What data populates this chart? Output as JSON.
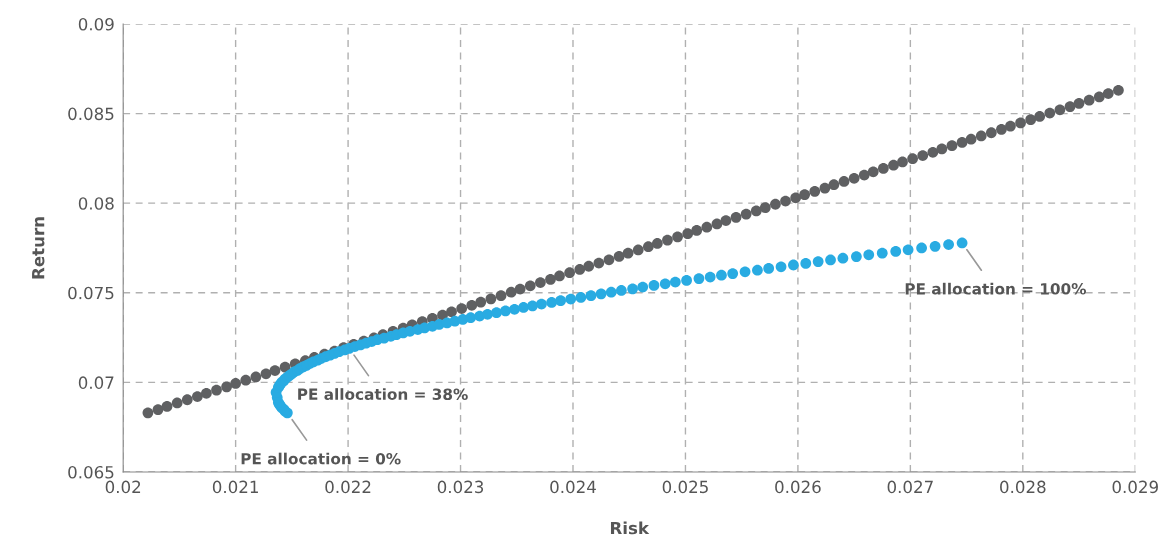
{
  "chart_data": {
    "type": "scatter",
    "xlabel": "Risk",
    "ylabel": "Return",
    "xlim": [
      0.02,
      0.029
    ],
    "xticks": [
      0.02,
      0.021,
      0.022,
      0.023,
      0.024,
      0.025,
      0.026,
      0.027,
      0.028,
      0.029
    ],
    "ylim": [
      0.065,
      0.09
    ],
    "yticks": [
      0.065,
      0.07,
      0.075,
      0.08,
      0.085,
      0.09
    ],
    "grid": true,
    "marker": "circle",
    "series": [
      {
        "color": "#5f6062",
        "x": [
          0.02022,
          0.02031,
          0.02039,
          0.02048,
          0.02057,
          0.02066,
          0.02074,
          0.02083,
          0.02092,
          0.021,
          0.02109,
          0.02118,
          0.02127,
          0.02135,
          0.02144,
          0.02153,
          0.02162,
          0.0217,
          0.02179,
          0.02188,
          0.02196,
          0.02205,
          0.02214,
          0.02223,
          0.02231,
          0.0224,
          0.02249,
          0.02257,
          0.02266,
          0.02275,
          0.02284,
          0.02292,
          0.02301,
          0.0231,
          0.02318,
          0.02327,
          0.02336,
          0.02345,
          0.02353,
          0.02362,
          0.02371,
          0.0238,
          0.02388,
          0.02397,
          0.02406,
          0.02414,
          0.02423,
          0.02432,
          0.02441,
          0.02449,
          0.02458,
          0.02467,
          0.02475,
          0.02484,
          0.02493,
          0.02502,
          0.0251,
          0.02519,
          0.02528,
          0.02536,
          0.02545,
          0.02554,
          0.02563,
          0.02571,
          0.0258,
          0.02589,
          0.02598,
          0.02606,
          0.02615,
          0.02624,
          0.02632,
          0.02641,
          0.0265,
          0.02659,
          0.02667,
          0.02676,
          0.02685,
          0.02693,
          0.02702,
          0.02711,
          0.0272,
          0.02728,
          0.02737,
          0.02746,
          0.02754,
          0.02763,
          0.02772,
          0.02781,
          0.02789,
          0.02798,
          0.02807,
          0.02815,
          0.02824,
          0.02833,
          0.02842,
          0.0285,
          0.02859,
          0.02868,
          0.02876,
          0.02885
        ],
        "values": [
          0.0683,
          0.06848,
          0.06866,
          0.06885,
          0.06903,
          0.06921,
          0.06939,
          0.06957,
          0.06975,
          0.06994,
          0.07012,
          0.0703,
          0.07048,
          0.07066,
          0.07085,
          0.07103,
          0.07121,
          0.07139,
          0.07157,
          0.07175,
          0.07194,
          0.07212,
          0.0723,
          0.07248,
          0.07266,
          0.07285,
          0.07303,
          0.07321,
          0.07339,
          0.07357,
          0.07375,
          0.07394,
          0.07412,
          0.0743,
          0.07448,
          0.07466,
          0.07484,
          0.07503,
          0.07521,
          0.07539,
          0.07557,
          0.07575,
          0.07594,
          0.07612,
          0.0763,
          0.07648,
          0.07666,
          0.07684,
          0.07703,
          0.07721,
          0.07739,
          0.07757,
          0.07775,
          0.07794,
          0.07812,
          0.0783,
          0.07848,
          0.07866,
          0.07884,
          0.07903,
          0.07921,
          0.07939,
          0.07957,
          0.07975,
          0.07994,
          0.08012,
          0.0803,
          0.08048,
          0.08066,
          0.08084,
          0.08103,
          0.08121,
          0.08139,
          0.08157,
          0.08175,
          0.08194,
          0.08212,
          0.0823,
          0.08248,
          0.08266,
          0.08284,
          0.08303,
          0.08321,
          0.08339,
          0.08357,
          0.08375,
          0.08393,
          0.08412,
          0.0843,
          0.08448,
          0.08466,
          0.08484,
          0.08503,
          0.08521,
          0.08539,
          0.08557,
          0.08575,
          0.08593,
          0.08612,
          0.0863
        ]
      },
      {
        "color": "#29abe2",
        "x": [
          0.02146,
          0.02144,
          0.02143,
          0.02141,
          0.0214,
          0.02139,
          0.02138,
          0.02137,
          0.02136,
          0.02138,
          0.02139,
          0.0214,
          0.02141,
          0.02143,
          0.02144,
          0.02146,
          0.02148,
          0.0215,
          0.02152,
          0.02155,
          0.02157,
          0.0216,
          0.02163,
          0.02166,
          0.02169,
          0.02173,
          0.02176,
          0.0218,
          0.02184,
          0.02188,
          0.02192,
          0.02197,
          0.02201,
          0.02206,
          0.02211,
          0.02216,
          0.02221,
          0.02226,
          0.02232,
          0.02238,
          0.02243,
          0.02249,
          0.02255,
          0.02262,
          0.02268,
          0.02275,
          0.02281,
          0.02288,
          0.02295,
          0.02302,
          0.02309,
          0.02317,
          0.02324,
          0.02332,
          0.0234,
          0.02348,
          0.02356,
          0.02364,
          0.02372,
          0.02381,
          0.02389,
          0.02398,
          0.02407,
          0.02416,
          0.02425,
          0.02434,
          0.02443,
          0.02453,
          0.02462,
          0.02472,
          0.02482,
          0.02491,
          0.02501,
          0.02512,
          0.02522,
          0.02532,
          0.02542,
          0.02553,
          0.02564,
          0.02574,
          0.02585,
          0.02596,
          0.02607,
          0.02618,
          0.02629,
          0.0264,
          0.02652,
          0.02663,
          0.02675,
          0.02687,
          0.02698,
          0.0271,
          0.02722,
          0.02734,
          0.02746
        ],
        "values": [
          0.0683,
          0.06839,
          0.06849,
          0.06858,
          0.06868,
          0.06877,
          0.06887,
          0.06915,
          0.06944,
          0.06972,
          0.06982,
          0.06991,
          0.07001,
          0.0701,
          0.0702,
          0.07029,
          0.07039,
          0.07048,
          0.07058,
          0.07067,
          0.07076,
          0.07086,
          0.07095,
          0.07105,
          0.07114,
          0.07124,
          0.07133,
          0.07143,
          0.07152,
          0.07162,
          0.07171,
          0.07181,
          0.0719,
          0.072,
          0.07209,
          0.07219,
          0.07228,
          0.07238,
          0.07247,
          0.07257,
          0.07266,
          0.07276,
          0.07285,
          0.07295,
          0.07304,
          0.07313,
          0.07323,
          0.07332,
          0.07342,
          0.07351,
          0.07361,
          0.0737,
          0.0738,
          0.07389,
          0.07399,
          0.07408,
          0.07418,
          0.07427,
          0.07437,
          0.07446,
          0.07456,
          0.07465,
          0.07474,
          0.07484,
          0.07494,
          0.07503,
          0.07513,
          0.07522,
          0.07532,
          0.07541,
          0.0755,
          0.0756,
          0.07569,
          0.07579,
          0.07588,
          0.07598,
          0.07607,
          0.07617,
          0.07626,
          0.07636,
          0.07645,
          0.07655,
          0.07664,
          0.07674,
          0.07683,
          0.07693,
          0.07702,
          0.07712,
          0.07721,
          0.07731,
          0.0774,
          0.0775,
          0.07759,
          0.07769,
          0.07778
        ]
      }
    ],
    "annotations": [
      {
        "text": "PE allocation = 0%",
        "x": 0.02146,
        "y": 0.0683
      },
      {
        "text": "PE allocation = 38%",
        "x": 0.02201,
        "y": 0.0719
      },
      {
        "text": "PE allocation = 100%",
        "x": 0.02746,
        "y": 0.07778
      }
    ]
  }
}
